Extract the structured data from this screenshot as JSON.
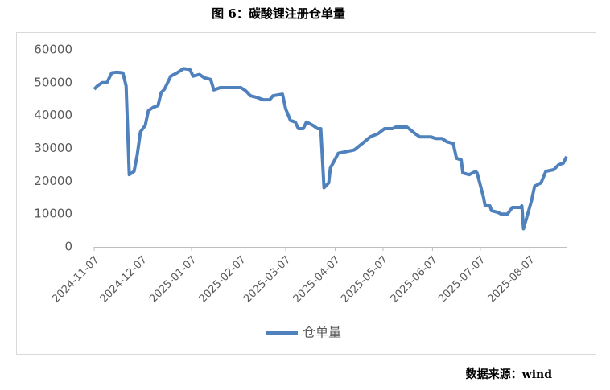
{
  "chart_data": {
    "type": "line",
    "title": "图 6：碳酸锂注册仓单量",
    "source": "数据来源：wind",
    "x": [
      "2024-11-07",
      "2024-11-09",
      "2024-11-12",
      "2024-11-15",
      "2024-11-18",
      "2024-11-21",
      "2024-11-25",
      "2024-11-27",
      "2024-11-29",
      "2024-12-02",
      "2024-12-04",
      "2024-12-06",
      "2024-12-09",
      "2024-12-11",
      "2024-12-14",
      "2024-12-17",
      "2024-12-19",
      "2024-12-21",
      "2024-12-25",
      "2024-12-29",
      "2025-01-02",
      "2025-01-06",
      "2025-01-08",
      "2025-01-12",
      "2025-01-15",
      "2025-01-19",
      "2025-01-21",
      "2025-01-25",
      "2025-02-07",
      "2025-02-10",
      "2025-02-13",
      "2025-02-17",
      "2025-02-21",
      "2025-02-25",
      "2025-02-27",
      "2025-03-05",
      "2025-03-07",
      "2025-03-10",
      "2025-03-13",
      "2025-03-15",
      "2025-03-18",
      "2025-03-20",
      "2025-03-24",
      "2025-03-27",
      "2025-03-29",
      "2025-03-31",
      "2025-04-03",
      "2025-04-04",
      "2025-04-09",
      "2025-04-14",
      "2025-04-19",
      "2025-04-24",
      "2025-04-29",
      "2025-05-04",
      "2025-05-08",
      "2025-05-13",
      "2025-05-15",
      "2025-05-22",
      "2025-05-27",
      "2025-05-30",
      "2025-06-06",
      "2025-06-09",
      "2025-06-13",
      "2025-06-16",
      "2025-06-20",
      "2025-06-22",
      "2025-06-25",
      "2025-06-26",
      "2025-06-30",
      "2025-07-04",
      "2025-07-05",
      "2025-07-09",
      "2025-07-10",
      "2025-07-13",
      "2025-07-14",
      "2025-07-18",
      "2025-07-20",
      "2025-07-24",
      "2025-07-27",
      "2025-08-01",
      "2025-08-02",
      "2025-08-03",
      "2025-08-08",
      "2025-08-10",
      "2025-08-14",
      "2025-08-17",
      "2025-08-22",
      "2025-08-25",
      "2025-08-28",
      "2025-08-30"
    ],
    "series": [
      {
        "name": "仓单量",
        "color": "#4f81bd",
        "values": [
          48000,
          49000,
          50000,
          50000,
          53000,
          53200,
          53000,
          49000,
          22000,
          23000,
          28000,
          35000,
          37000,
          41500,
          42500,
          43000,
          47000,
          48000,
          52000,
          53000,
          54300,
          54000,
          52000,
          52500,
          51500,
          51000,
          47800,
          48500,
          48500,
          47500,
          46000,
          45500,
          44800,
          44800,
          46000,
          46500,
          42000,
          38500,
          38000,
          36000,
          36000,
          38000,
          37000,
          36000,
          36000,
          18000,
          19500,
          24000,
          28500,
          29000,
          29500,
          31500,
          33500,
          34500,
          36000,
          36000,
          36500,
          36500,
          34500,
          33500,
          33500,
          33000,
          33000,
          32000,
          31500,
          27000,
          26500,
          22500,
          22000,
          23000,
          22500,
          15000,
          12500,
          12500,
          11000,
          10500,
          10000,
          10000,
          12000,
          12000,
          12500,
          5500,
          14000,
          18500,
          19500,
          23000,
          23500,
          25000,
          25500,
          27500
        ]
      }
    ],
    "xlim": [
      "2024-11-07",
      "2025-08-30"
    ],
    "xticks": [
      "2024-11-07",
      "2024-12-07",
      "2025-01-07",
      "2025-02-07",
      "2025-03-07",
      "2025-04-07",
      "2025-05-07",
      "2025-06-07",
      "2025-07-07",
      "2025-08-07"
    ],
    "ylim": [
      0,
      60000
    ],
    "yticks": [
      0,
      10000,
      20000,
      30000,
      40000,
      50000,
      60000
    ],
    "grid": false,
    "legend": "bottom"
  }
}
